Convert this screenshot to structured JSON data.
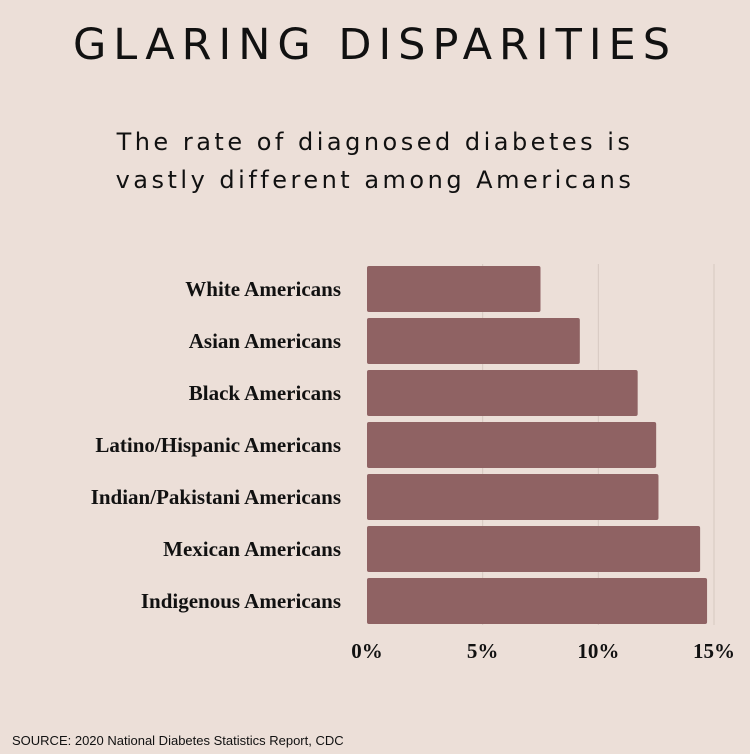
{
  "chart_data": {
    "type": "bar",
    "orientation": "horizontal",
    "title": "GLARING DISPARITIES",
    "subtitle_lines": [
      "The rate of diagnosed diabetes is",
      "vastly different among Americans"
    ],
    "categories": [
      "White Americans",
      "Asian Americans",
      "Black Americans",
      "Latino/Hispanic Americans",
      "Indian/Pakistani Americans",
      "Mexican Americans",
      "Indigenous Americans"
    ],
    "values": [
      7.5,
      9.2,
      11.7,
      12.5,
      12.6,
      14.4,
      14.7
    ],
    "xlim": [
      0,
      15
    ],
    "xticks": [
      0,
      5,
      10,
      15
    ],
    "xtick_labels": [
      "0%",
      "5%",
      "10%",
      "15%"
    ],
    "grid": true,
    "bar_color": "#8f6263"
  },
  "source": "SOURCE: 2020 National Diabetes Statistics Report, CDC"
}
